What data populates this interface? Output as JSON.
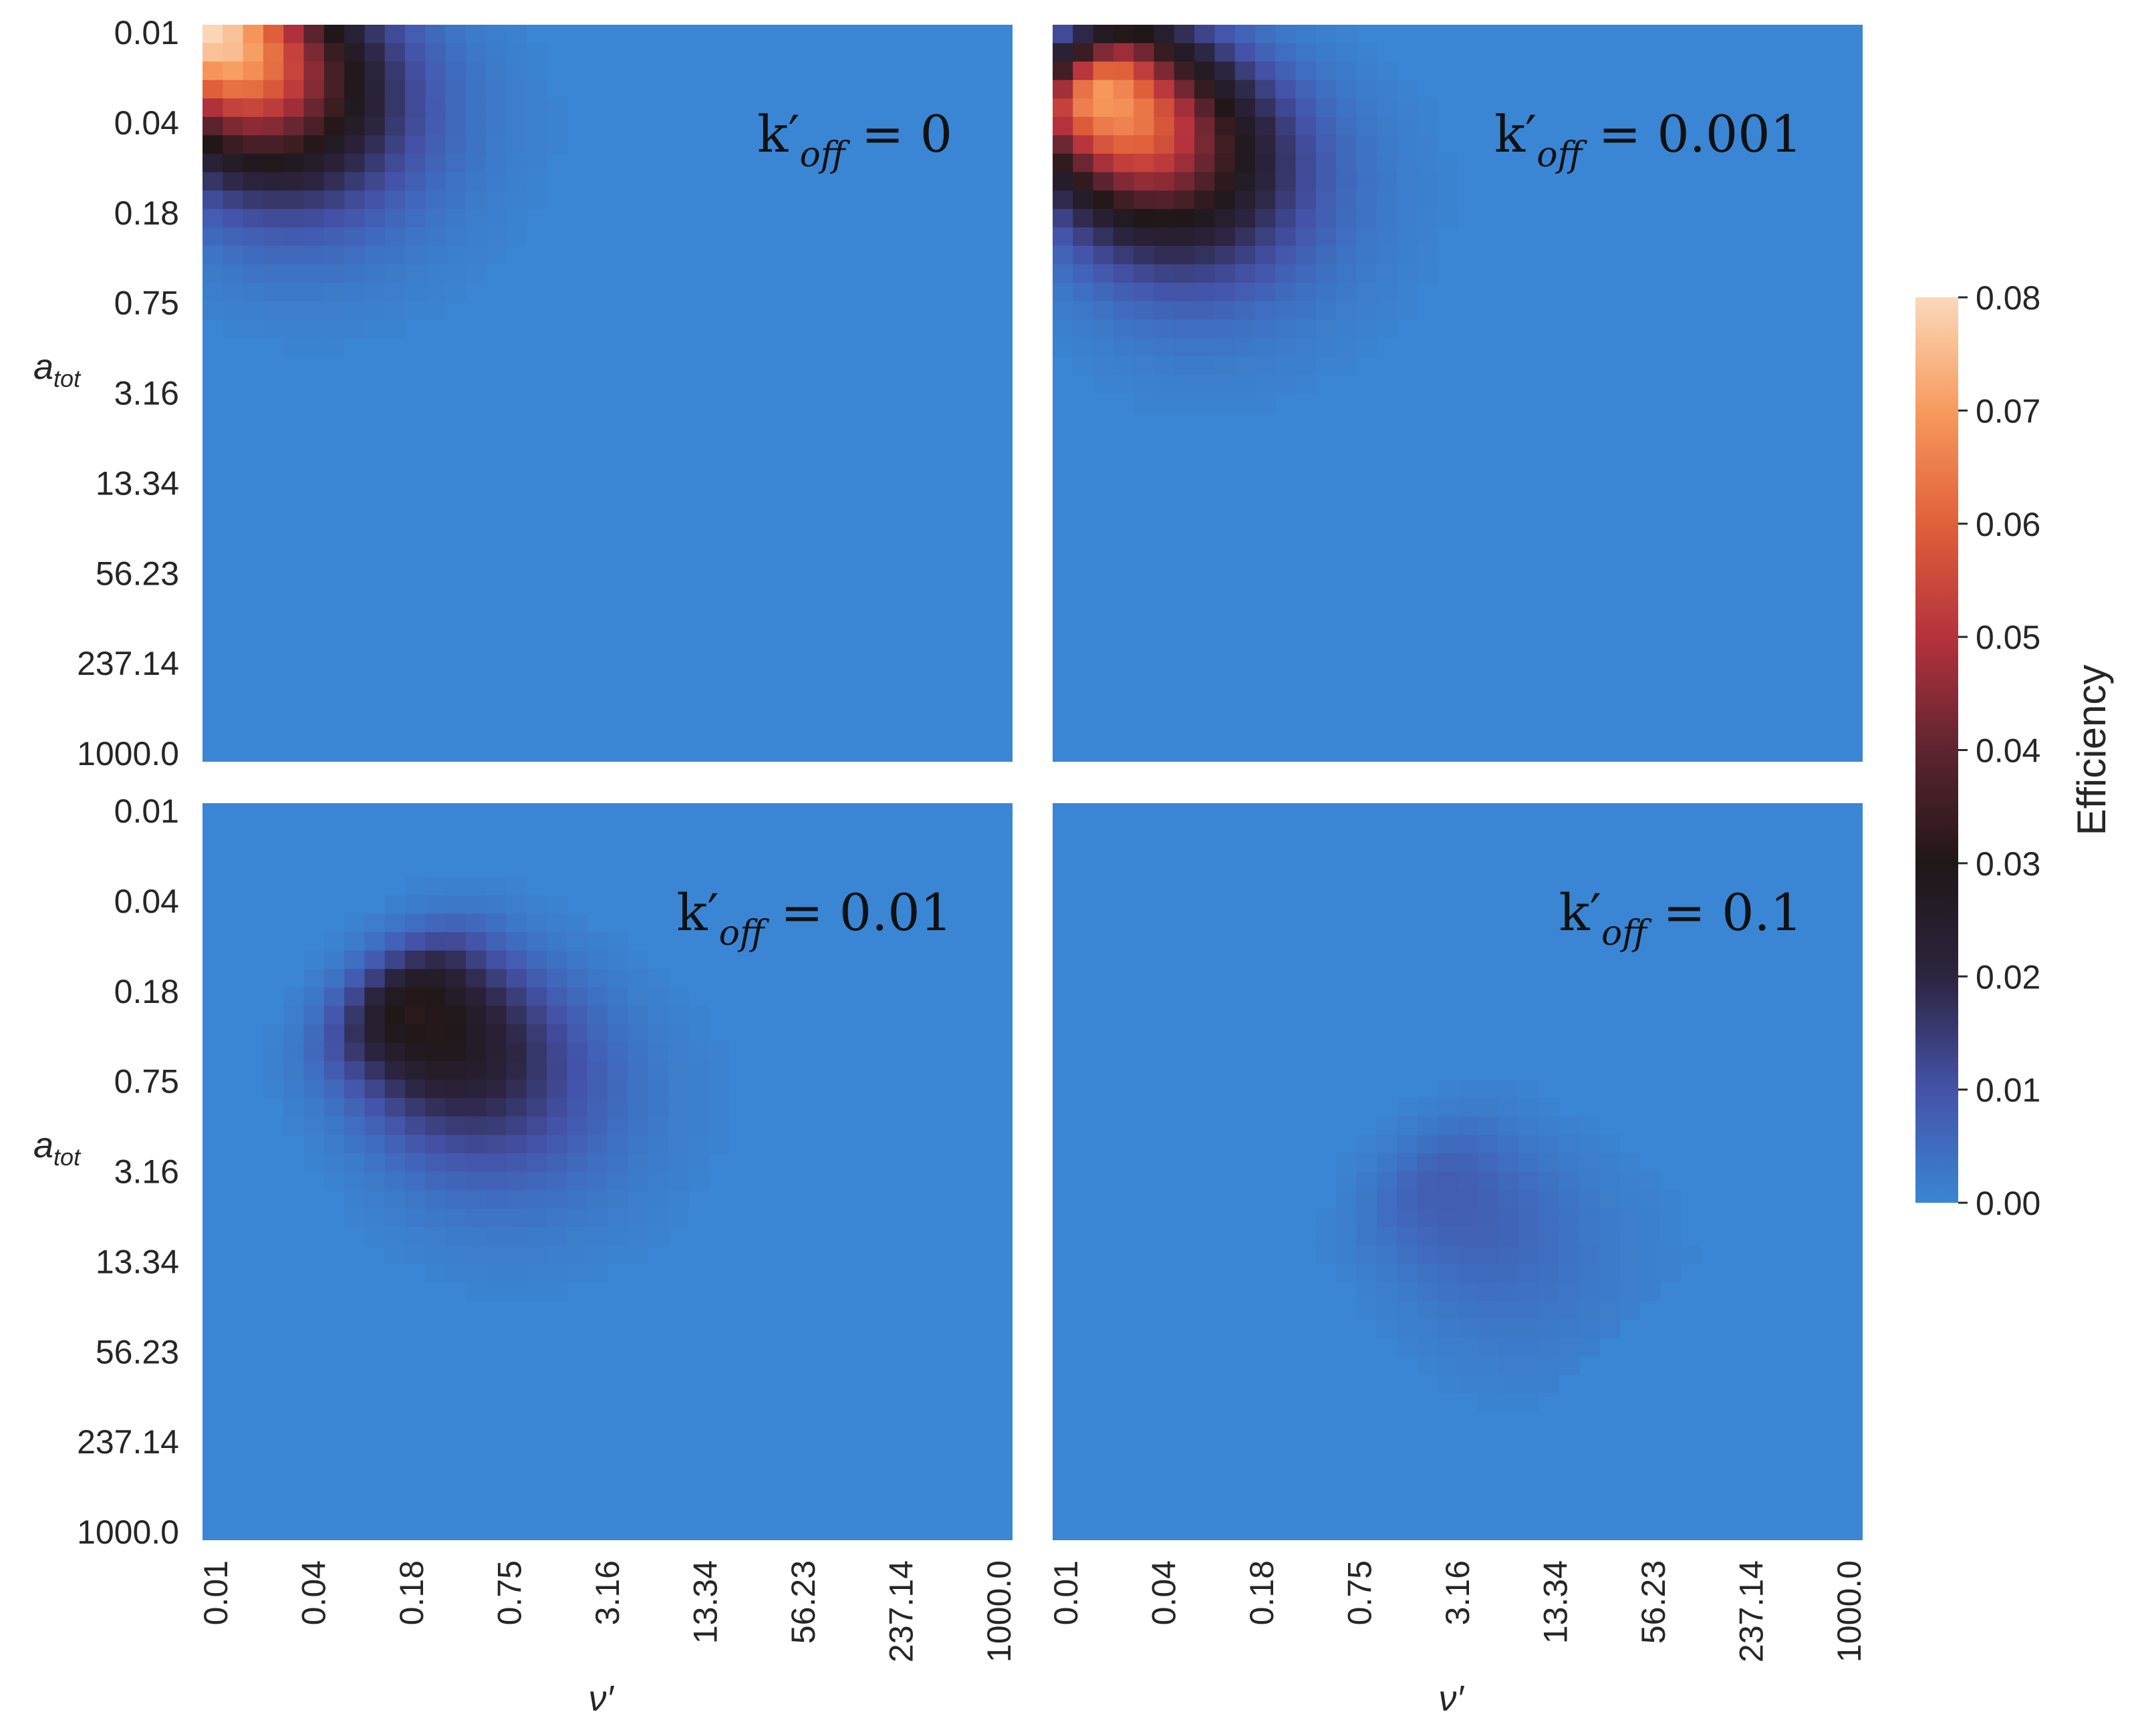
{
  "chart_data": {
    "type": "heatmap",
    "layout": "2x2 subplots sharing axes",
    "x_axis": {
      "label": "ν′",
      "tick_labels": [
        "0.01",
        "0.04",
        "0.18",
        "0.75",
        "3.16",
        "13.34",
        "56.23",
        "237.14",
        "1000.0"
      ],
      "scale": "log",
      "range": [
        0.01,
        1000.0
      ]
    },
    "y_axis": {
      "label": "a",
      "label_subscript": "tot",
      "tick_labels": [
        "0.01",
        "0.04",
        "0.18",
        "0.75",
        "3.16",
        "13.34",
        "56.23",
        "237.14",
        "1000.0"
      ],
      "scale": "log",
      "range": [
        0.01,
        1000.0
      ],
      "inverted": true
    },
    "colorbar": {
      "label": "Efficiency",
      "tick_labels": [
        "0.00",
        "0.01",
        "0.02",
        "0.03",
        "0.04",
        "0.05",
        "0.06",
        "0.07",
        "0.08"
      ],
      "range": [
        0.0,
        0.08
      ],
      "colors": [
        "#3a86d4",
        "#4452a8",
        "#2d2440",
        "#1f1717",
        "#5e2430",
        "#b5323c",
        "#e0603a",
        "#f79a5d",
        "#fbd9bb"
      ]
    },
    "grid": false,
    "panels": [
      {
        "label_main": "k′",
        "label_sub": "off",
        "label_rest": " = 0",
        "peak_efficiency": 0.08,
        "peak_nu": 0.01,
        "peak_a_tot": 0.01,
        "ridge_slope": -1.0,
        "cutoff_a_tot_times_nu": 1000.0
      },
      {
        "label_main": "k′",
        "label_sub": "off",
        "label_rest": " = 0.001",
        "peak_efficiency": 0.07,
        "peak_nu": 0.02,
        "peak_a_tot": 0.03,
        "ridge_slope": -1.0,
        "cutoff_a_tot_times_nu": 1000.0
      },
      {
        "label_main": "k′",
        "label_sub": "off",
        "label_rest": " = 0.01",
        "peak_efficiency": 0.032,
        "peak_nu": 0.2,
        "peak_a_tot": 0.25,
        "ridge_slope": -1.0,
        "cutoff_a_tot_times_nu": 1000.0
      },
      {
        "label_main": "k′",
        "label_sub": "off",
        "label_rest": " = 0.1",
        "peak_efficiency": 0.008,
        "peak_nu": 2.5,
        "peak_a_tot": 4.0,
        "ridge_slope": -1.0,
        "cutoff_a_tot_times_nu": 1000.0
      }
    ]
  }
}
